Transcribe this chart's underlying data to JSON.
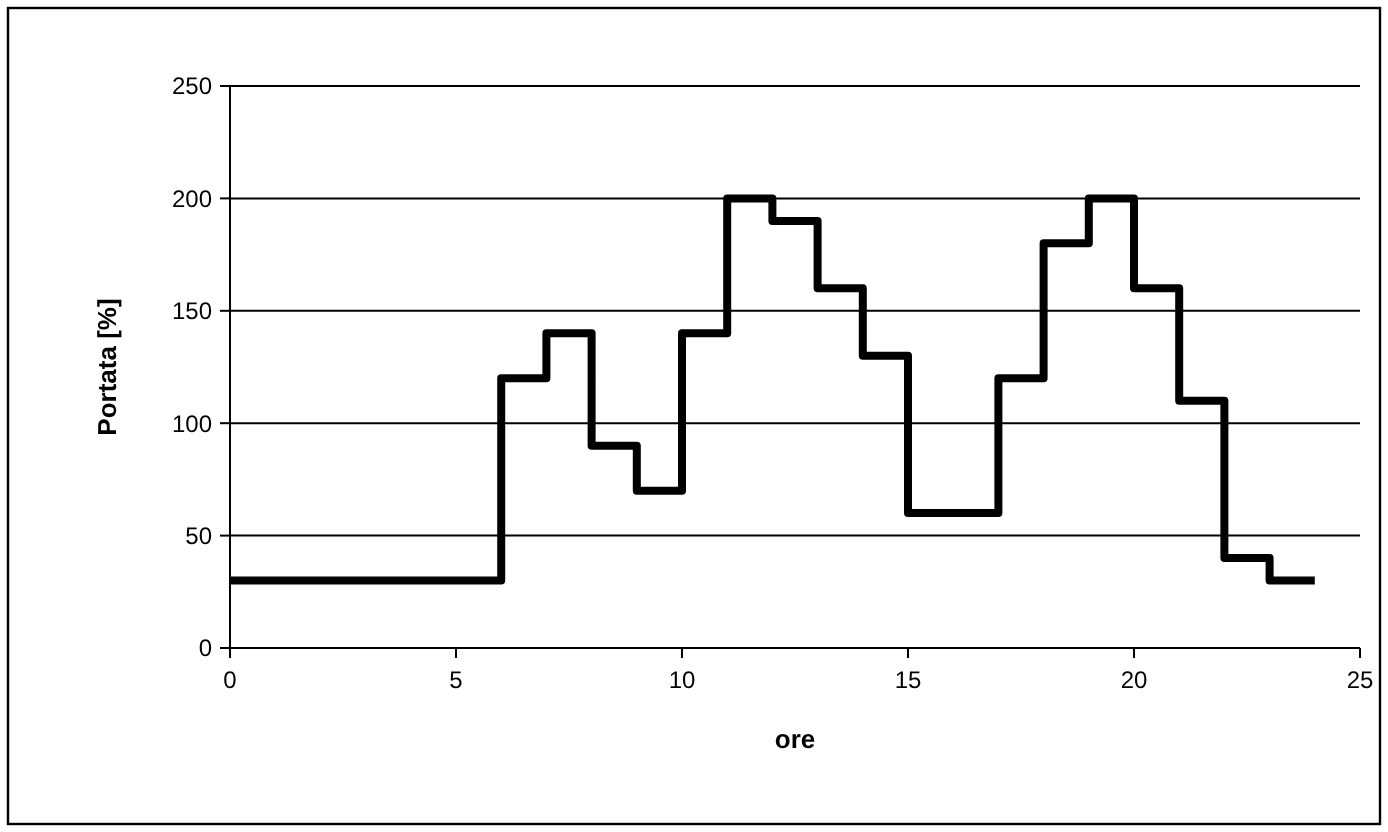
{
  "chart_data": {
    "type": "step",
    "xlabel": "ore",
    "ylabel": "Portata [%]",
    "x": [
      0,
      1,
      2,
      3,
      4,
      5,
      6,
      7,
      8,
      9,
      10,
      11,
      12,
      13,
      14,
      15,
      16,
      17,
      18,
      19,
      20,
      21,
      22,
      23,
      24
    ],
    "series": [
      {
        "color": "#000000",
        "values": [
          30,
          30,
          30,
          30,
          30,
          30,
          120,
          140,
          90,
          70,
          140,
          200,
          190,
          160,
          130,
          60,
          60,
          120,
          180,
          200,
          160,
          110,
          40,
          30,
          30
        ]
      }
    ],
    "xlim": [
      0,
      25
    ],
    "xticks": [
      0,
      5,
      10,
      15,
      20,
      25
    ],
    "ylim": [
      0,
      250
    ],
    "yticks": [
      0,
      50,
      100,
      150,
      200,
      250
    ],
    "grid": "y"
  }
}
